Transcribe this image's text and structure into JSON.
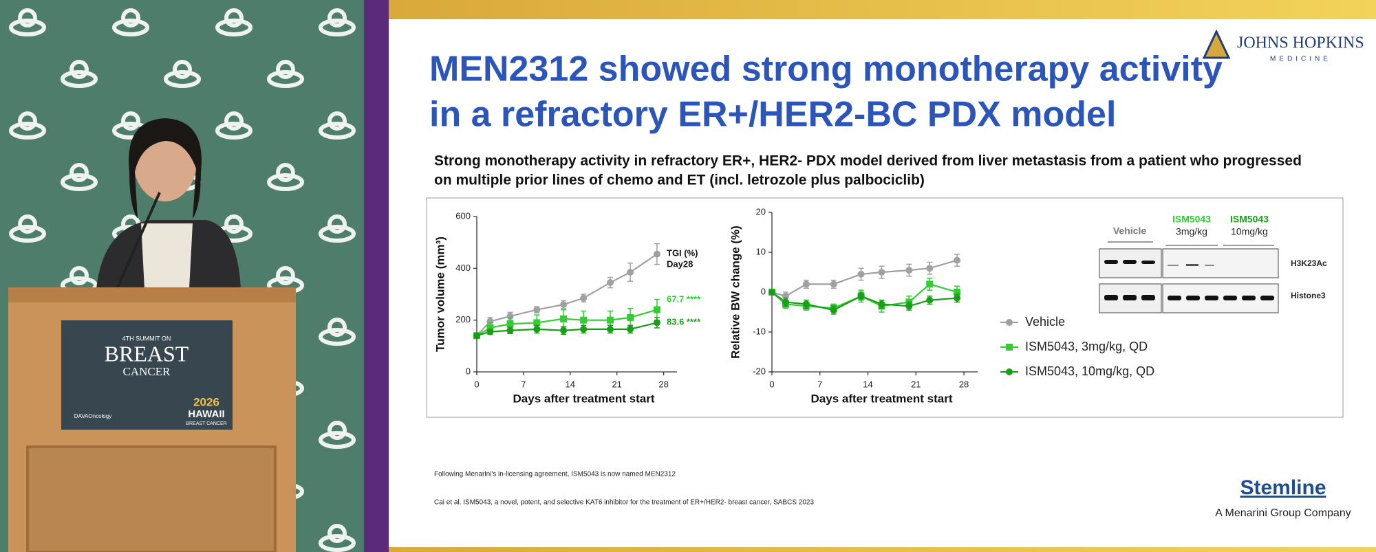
{
  "video": {
    "sign": [
      "4TH SUMMIT ON",
      "BREAST",
      "CANCER"
    ],
    "sponsor": "DAVAOncology",
    "year": "2026",
    "place": "HAWAII",
    "place_sub": "BREAST CANCER"
  },
  "slide": {
    "logo": "JOHNS HOPKINS",
    "logo_sub": "MEDICINE",
    "title": [
      "MEN2312 showed strong monotherapy activity",
      "in a refractory ER+/HER2-BC PDX model"
    ],
    "subtitle": [
      "Strong monotherapy activity in refractory ER+, HER2- PDX model derived from liver metastasis from a patient who progressed",
      "on multiple prior lines of chemo and ET (incl. letrozole plus palbociclib)"
    ],
    "blot": {
      "groups": [
        "Vehicle",
        "ISM5043",
        "ISM5043"
      ],
      "doses": [
        "3mg/kg",
        "10mg/kg"
      ],
      "rows": [
        "H3K23Ac",
        "Histone3"
      ]
    },
    "footnotes": [
      "Following Menarini's in-licensing agreement, ISM5043 is now named MEN2312",
      "Cai et al. ISM5043, a novel, potent, and selective KAT6 inhibitor for the treatment of ER+/HER2- breast cancer, SABCS 2023"
    ],
    "brand": "Stemline",
    "brand_sub": "A Menarini Group Company"
  },
  "chart_data": [
    {
      "type": "line",
      "x_label": "Days after treatment start",
      "y_label": "Tumor volume (mm³)",
      "x": [
        0,
        2,
        5,
        9,
        13,
        16,
        20,
        23,
        27
      ],
      "xlim": [
        0,
        30
      ],
      "xticks": [
        0,
        7,
        14,
        21,
        28
      ],
      "ylim": [
        0,
        600
      ],
      "yticks": [
        0,
        200,
        400,
        600
      ],
      "series": [
        {
          "color": "#a0a0a0",
          "marker": "circle",
          "values": [
            140,
            195,
            215,
            240,
            260,
            285,
            345,
            385,
            455
          ],
          "errors": [
            10,
            15,
            15,
            12,
            15,
            15,
            20,
            35,
            40
          ]
        },
        {
          "color": "#33cc33",
          "marker": "square",
          "values": [
            140,
            170,
            185,
            190,
            205,
            200,
            200,
            210,
            240
          ],
          "errors": [
            10,
            20,
            25,
            30,
            35,
            35,
            35,
            35,
            40
          ]
        },
        {
          "color": "#1a9e1a",
          "marker": "circle",
          "values": [
            140,
            155,
            160,
            165,
            160,
            165,
            165,
            165,
            190
          ],
          "errors": [
            8,
            10,
            12,
            15,
            15,
            15,
            15,
            15,
            20
          ]
        }
      ],
      "annotations": [
        "TGI (%)",
        "Day28",
        "67.7 ****",
        "83.6 ****"
      ]
    },
    {
      "type": "line",
      "x_label": "Days after treatment start",
      "y_label": "Relative BW change (%)",
      "x": [
        0,
        2,
        5,
        9,
        13,
        16,
        20,
        23,
        27
      ],
      "xlim": [
        0,
        30
      ],
      "xticks": [
        0,
        7,
        14,
        21,
        28
      ],
      "ylim": [
        -20,
        20
      ],
      "yticks": [
        -20,
        -10,
        0,
        10,
        20
      ],
      "series": [
        {
          "name": "Vehicle",
          "color": "#a0a0a0",
          "marker": "circle",
          "values": [
            0,
            -1,
            2,
            2,
            4.5,
            5,
            5.5,
            6,
            8
          ],
          "errors": [
            0.5,
            1,
            1,
            1,
            1.5,
            1.5,
            1.5,
            1.5,
            1.5
          ]
        },
        {
          "name": "ISM5043, 3mg/kg, QD",
          "color": "#33cc33",
          "marker": "square",
          "values": [
            0,
            -3,
            -3.5,
            -4,
            -1,
            -3.5,
            -2.5,
            2,
            0
          ],
          "errors": [
            0.5,
            1,
            1,
            1,
            1.5,
            1.5,
            1.5,
            1.5,
            1.5
          ]
        },
        {
          "name": "ISM5043, 10mg/kg, QD",
          "color": "#1a9e1a",
          "marker": "circle",
          "values": [
            0,
            -2.5,
            -3,
            -4.5,
            -1,
            -3,
            -3.5,
            -2,
            -1.5
          ],
          "errors": [
            0.5,
            1,
            1,
            1,
            1,
            1,
            1,
            1,
            1
          ]
        }
      ]
    }
  ]
}
